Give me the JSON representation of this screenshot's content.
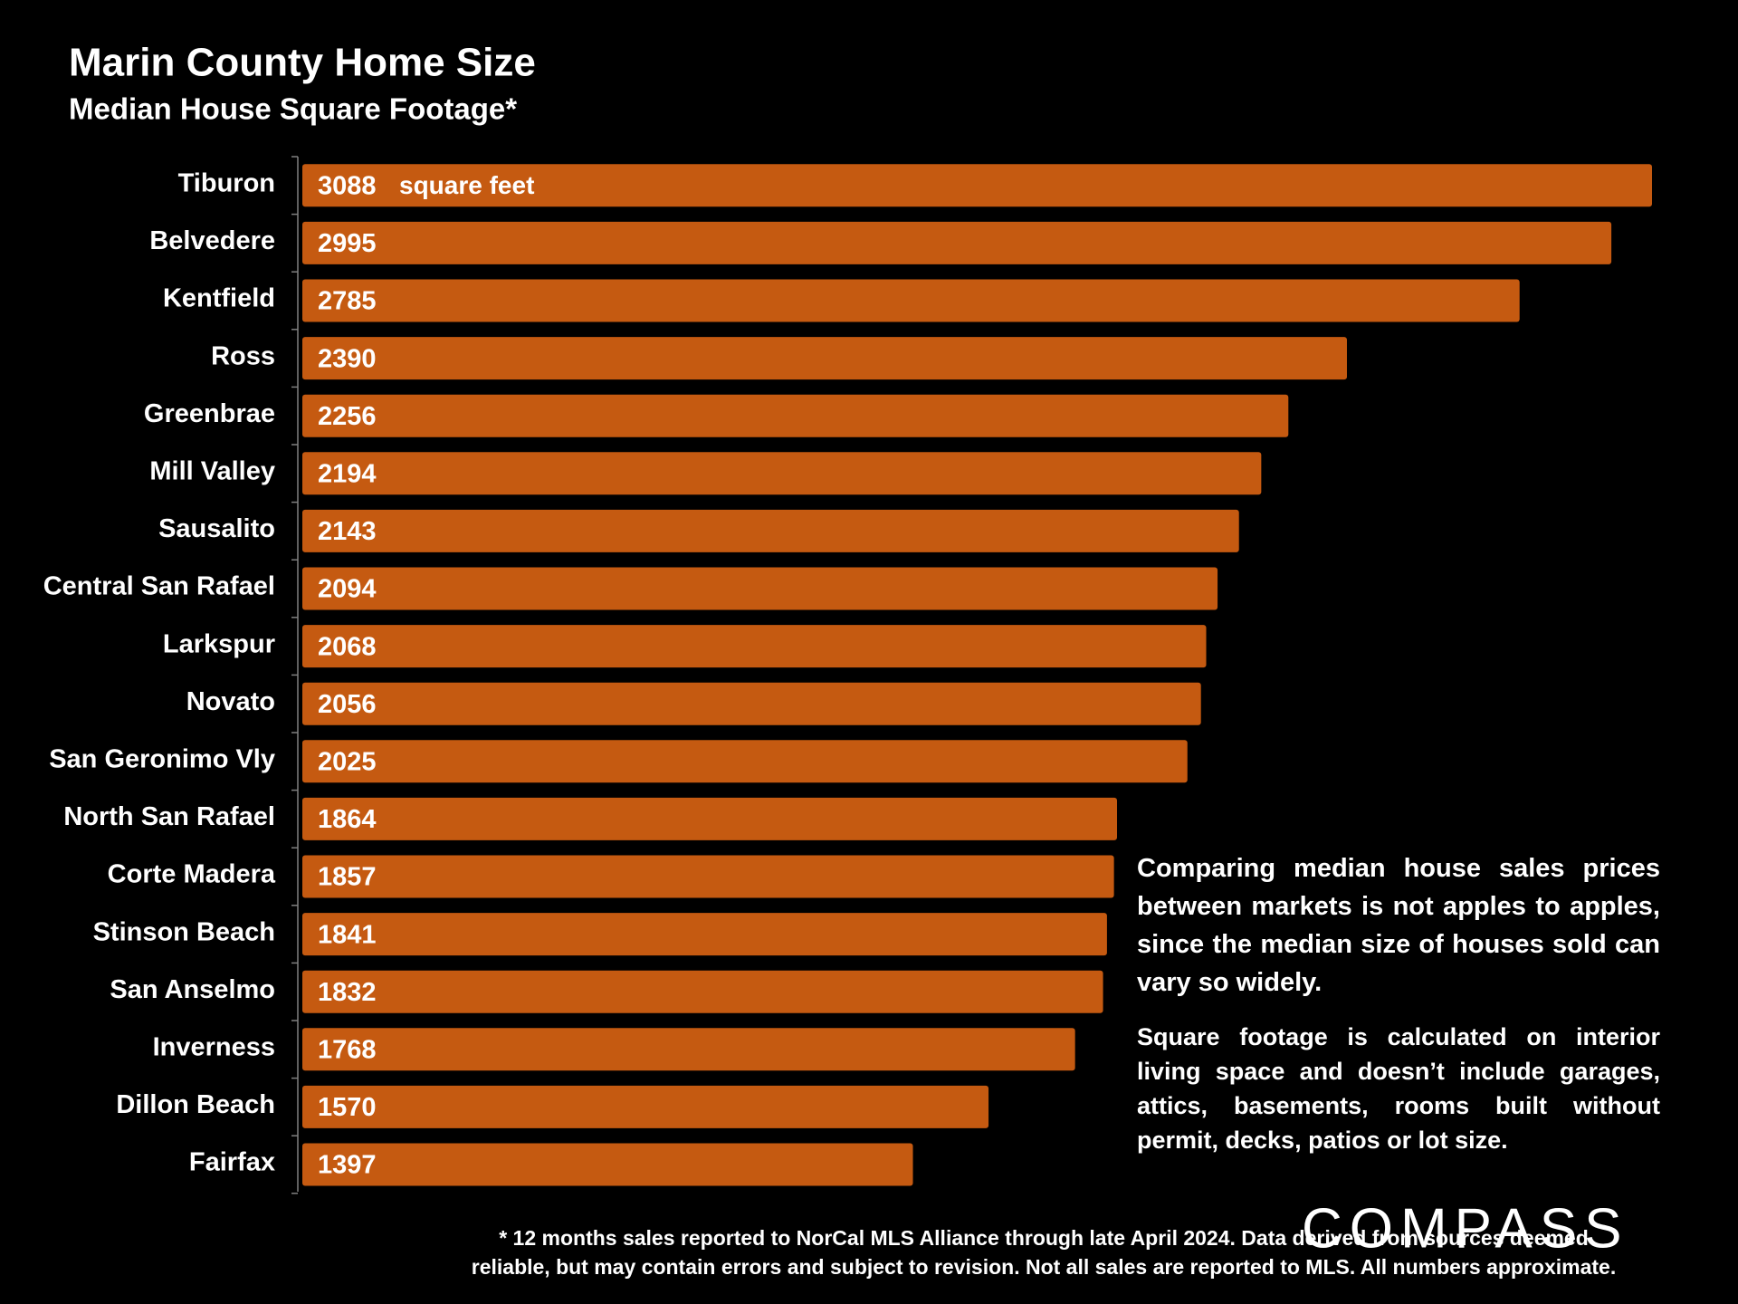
{
  "chart_data": {
    "type": "bar",
    "orientation": "horizontal",
    "title": "Marin County Home Size",
    "subtitle": "Median House Square Footage*",
    "unit_label": "square feet",
    "categories": [
      "Tiburon",
      "Belvedere",
      "Kentfield",
      "Ross",
      "Greenbrae",
      "Mill Valley",
      "Sausalito",
      "Central San Rafael",
      "Larkspur",
      "Novato",
      "San Geronimo Vly",
      "North San Rafael",
      "Corte Madera",
      "Stinson Beach",
      "San Anselmo",
      "Inverness",
      "Dillon Beach",
      "Fairfax"
    ],
    "values": [
      3088,
      2995,
      2785,
      2390,
      2256,
      2194,
      2143,
      2094,
      2068,
      2056,
      2025,
      1864,
      1857,
      1841,
      1832,
      1768,
      1570,
      1397
    ],
    "color": "#c55a11",
    "annotations": [
      "Comparing median house sales prices between markets is not apples to apples, since the median size of houses sold can vary so widely.",
      "Square footage is calculated on interior living space and doesn’t include garages, attics, basements, rooms built without permit, decks, patios or lot size."
    ],
    "footnote": [
      "* 12 months sales reported to NorCal MLS Alliance through late April 2024. Data derived from sources deemed",
      "reliable, but may contain errors and subject to revision. Not all sales are reported to MLS. All numbers approximate."
    ],
    "logo": "COMPASS"
  }
}
